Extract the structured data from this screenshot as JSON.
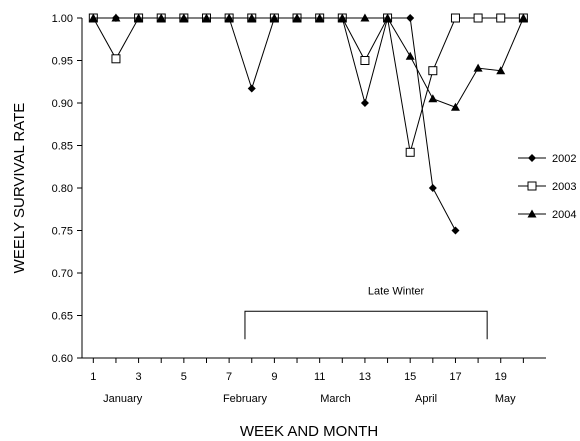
{
  "chart_data": {
    "type": "line",
    "title": "",
    "xlabel": "WEEK AND MONTH",
    "ylabel": "WEELY SURVIVAL RATE",
    "xlim": [
      0.5,
      21
    ],
    "ylim": [
      0.6,
      1.0
    ],
    "x_ticks": [
      1,
      3,
      5,
      7,
      9,
      11,
      13,
      15,
      17,
      19
    ],
    "y_ticks": [
      "0.60",
      "0.65",
      "0.70",
      "0.75",
      "0.80",
      "0.85",
      "0.90",
      "0.95",
      "1.00"
    ],
    "months": [
      {
        "label": "January",
        "x": 2.3
      },
      {
        "label": "February",
        "x": 7.7
      },
      {
        "label": "March",
        "x": 11.7
      },
      {
        "label": "April",
        "x": 15.7
      },
      {
        "label": "May",
        "x": 19.2
      }
    ],
    "legend_position": "right",
    "x": [
      1,
      2,
      3,
      4,
      5,
      6,
      7,
      8,
      9,
      10,
      11,
      12,
      13,
      14,
      15,
      16,
      17,
      18,
      19,
      20
    ],
    "series": [
      {
        "name": "2002",
        "marker": "diamond",
        "values": [
          1.0,
          1.0,
          1.0,
          1.0,
          1.0,
          1.0,
          1.0,
          0.917,
          1.0,
          1.0,
          1.0,
          1.0,
          0.9,
          1.0,
          1.0,
          0.8,
          0.75,
          null,
          null,
          null
        ]
      },
      {
        "name": "2003",
        "marker": "square",
        "values": [
          1.0,
          0.952,
          1.0,
          1.0,
          1.0,
          1.0,
          1.0,
          1.0,
          1.0,
          1.0,
          1.0,
          1.0,
          0.95,
          1.0,
          0.842,
          0.938,
          1.0,
          1.0,
          1.0,
          1.0
        ]
      },
      {
        "name": "2004",
        "marker": "triangle",
        "values": [
          1.0,
          1.0,
          1.0,
          1.0,
          1.0,
          1.0,
          1.0,
          1.0,
          1.0,
          1.0,
          1.0,
          1.0,
          1.0,
          1.0,
          0.955,
          0.905,
          0.895,
          0.941,
          0.938,
          1.0
        ]
      }
    ],
    "annotation": {
      "label": "Late Winter",
      "x_start": 7.7,
      "x_end": 18.4,
      "y": 0.655,
      "y_bottom": 0.622
    }
  }
}
